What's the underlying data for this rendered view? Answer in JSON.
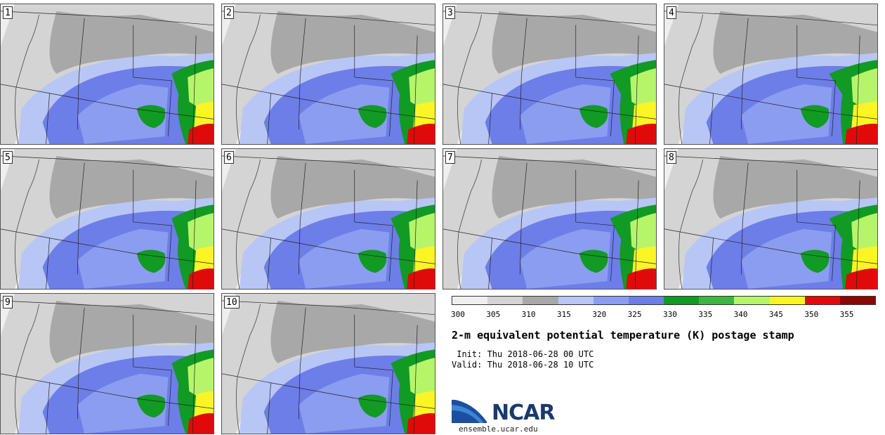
{
  "panels": [
    {
      "label": "1"
    },
    {
      "label": "2"
    },
    {
      "label": "3"
    },
    {
      "label": "4"
    },
    {
      "label": "5"
    },
    {
      "label": "6"
    },
    {
      "label": "7"
    },
    {
      "label": "8"
    },
    {
      "label": "9"
    },
    {
      "label": "10"
    }
  ],
  "colorbar": {
    "tick_labels": [
      "300",
      "305",
      "310",
      "315",
      "320",
      "325",
      "330",
      "335",
      "340",
      "345",
      "350",
      "355"
    ],
    "colors": [
      "#efefef",
      "#d4d4d4",
      "#a8a8a8",
      "#b8c6f5",
      "#8b9df0",
      "#6d7ee8",
      "#119a24",
      "#3db542",
      "#b6f56a",
      "#fbf526",
      "#e10a0a",
      "#8a0707"
    ]
  },
  "title": "2-m equivalent potential temperature (K) postage stamp",
  "init": " Init: Thu 2018-06-28 00 UTC",
  "valid": "Valid: Thu 2018-06-28 10 UTC",
  "logo": {
    "text": "NCAR",
    "url": "ensemble.ucar.edu"
  }
}
